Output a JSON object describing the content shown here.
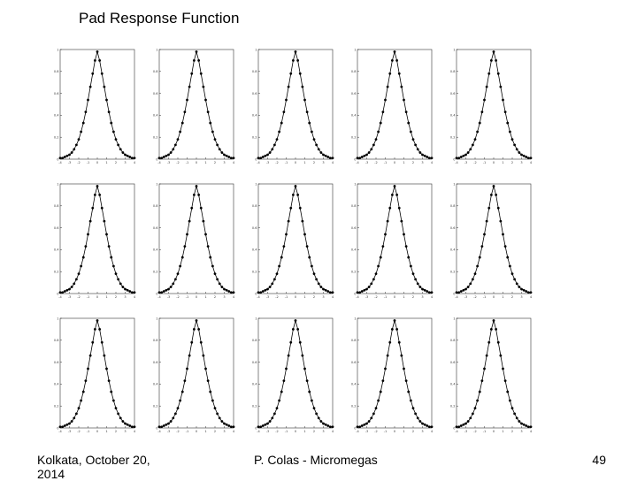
{
  "slide": {
    "title": "Pad Response Function",
    "footer_left": "Kolkata, October 20, 2014",
    "footer_center": "P. Colas - Micromegas",
    "page_number": "49"
  },
  "colors": {
    "axis": "#333333",
    "curve": "#000000",
    "marker": "#000000"
  },
  "chart_data": {
    "type": "scatter",
    "layout": "3 rows x 5 columns of small panels, each showing the same bell-shaped pad response curve",
    "panels": 15,
    "x": [
      -4.0,
      -3.75,
      -3.5,
      -3.25,
      -3.0,
      -2.75,
      -2.5,
      -2.25,
      -2.0,
      -1.75,
      -1.5,
      -1.25,
      -1.0,
      -0.75,
      -0.5,
      -0.25,
      0.0,
      0.25,
      0.5,
      0.75,
      1.0,
      1.25,
      1.5,
      1.75,
      2.0,
      2.25,
      2.5,
      2.75,
      3.0,
      3.25,
      3.5,
      3.75,
      4.0
    ],
    "y": [
      0.01,
      0.01,
      0.02,
      0.03,
      0.04,
      0.06,
      0.09,
      0.13,
      0.18,
      0.25,
      0.33,
      0.43,
      0.54,
      0.66,
      0.78,
      0.9,
      0.98,
      0.9,
      0.78,
      0.66,
      0.54,
      0.43,
      0.33,
      0.25,
      0.18,
      0.13,
      0.09,
      0.06,
      0.04,
      0.03,
      0.02,
      0.01,
      0.01
    ],
    "xlim": [
      -4,
      4
    ],
    "ylim": [
      0,
      1.0
    ],
    "xticks": [
      "-4",
      "-3",
      "-2",
      "-1",
      "0",
      "1",
      "2",
      "3",
      "4"
    ],
    "yticks": [
      "0",
      "0.2",
      "0.4",
      "0.6",
      "0.8",
      "1"
    ]
  }
}
